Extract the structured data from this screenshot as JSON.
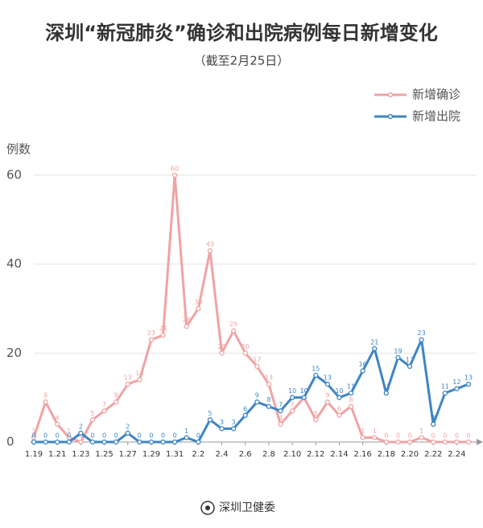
{
  "chart_data": {
    "type": "line",
    "title": "深圳“新冠肺炎”确诊和出院病例每日新增变化",
    "subtitle": "（截至2月25日）",
    "y_label": "例数",
    "categories": [
      "1.19",
      null,
      "1.21",
      null,
      "1.23",
      null,
      "1.25",
      null,
      "1.27",
      null,
      "1.29",
      null,
      "1.31",
      null,
      "2.2",
      null,
      "2.4",
      null,
      "2.6",
      null,
      "2.8",
      null,
      "2.10",
      null,
      "2.12",
      null,
      "2.14",
      null,
      "2.16",
      null,
      "2.18",
      null,
      "2.20",
      null,
      "2.22",
      null,
      "2.24",
      null
    ],
    "series": [
      {
        "name": "新增确诊",
        "color": "#f0a3a3",
        "values": [
          1,
          9,
          4,
          1,
          0,
          5,
          7,
          9,
          13,
          14,
          23,
          24,
          60,
          26,
          30,
          43,
          20,
          25,
          20,
          17,
          13,
          4,
          7,
          10,
          5,
          9,
          6,
          8,
          1,
          1,
          0,
          0,
          0,
          1,
          0,
          0,
          0,
          0
        ]
      },
      {
        "name": "新增出院",
        "color": "#3d85c6",
        "values": [
          0,
          0,
          0,
          0,
          2,
          0,
          0,
          0,
          2,
          0,
          0,
          0,
          0,
          1,
          0,
          5,
          3,
          3,
          6,
          9,
          8,
          7,
          10,
          10,
          15,
          13,
          10,
          11,
          16,
          21,
          11,
          19,
          17,
          23,
          4,
          11,
          12,
          13
        ]
      }
    ],
    "ylim": [
      0,
      60
    ],
    "yticks": [
      0,
      20,
      40,
      60
    ],
    "grid": true,
    "legend": "top-right",
    "footer": "深圳卫健委"
  }
}
